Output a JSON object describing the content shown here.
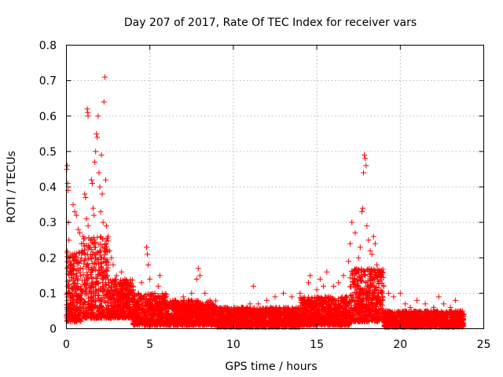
{
  "chart_data": {
    "type": "scatter",
    "title": "Day 207 of 2017, Rate Of TEC Index for receiver vars",
    "xlabel": "GPS time / hours",
    "ylabel": "ROTI / TECUs",
    "xlim": [
      0,
      25
    ],
    "ylim": [
      0,
      0.8
    ],
    "xticks": [
      0,
      5,
      10,
      15,
      20,
      25
    ],
    "yticks": [
      0,
      0.1,
      0.2,
      0.3,
      0.4,
      0.5,
      0.6,
      0.7,
      0.8
    ],
    "xtick_labels": [
      "0",
      "5",
      "10",
      "15",
      "20",
      "25"
    ],
    "ytick_labels": [
      "0",
      "0.1",
      "0.2",
      "0.3",
      "0.4",
      "0.5",
      "0.6",
      "0.7",
      "0.8"
    ],
    "grid": true,
    "marker": "+",
    "marker_color": "#ff0000",
    "series": [
      {
        "name": "ROTI",
        "points": [
          [
            0.02,
            0.45
          ],
          [
            0.05,
            0.46
          ],
          [
            0.08,
            0.41
          ],
          [
            0.1,
            0.39
          ],
          [
            0.12,
            0.3
          ],
          [
            0.15,
            0.25
          ],
          [
            0.2,
            0.2
          ],
          [
            0.25,
            0.18
          ],
          [
            0.3,
            0.15
          ],
          [
            0.4,
            0.35
          ],
          [
            0.5,
            0.33
          ],
          [
            0.6,
            0.32
          ],
          [
            0.7,
            0.28
          ],
          [
            0.8,
            0.27
          ],
          [
            0.9,
            0.24
          ],
          [
            1.0,
            0.26
          ],
          [
            1.1,
            0.38
          ],
          [
            1.15,
            0.37
          ],
          [
            1.2,
            0.31
          ],
          [
            1.3,
            0.29
          ],
          [
            1.25,
            0.62
          ],
          [
            1.28,
            0.61
          ],
          [
            1.3,
            0.6
          ],
          [
            1.5,
            0.42
          ],
          [
            1.55,
            0.41
          ],
          [
            1.6,
            0.34
          ],
          [
            1.65,
            0.32
          ],
          [
            1.7,
            0.47
          ],
          [
            1.75,
            0.5
          ],
          [
            1.8,
            0.55
          ],
          [
            1.85,
            0.54
          ],
          [
            1.9,
            0.6
          ],
          [
            1.95,
            0.44
          ],
          [
            2.0,
            0.4
          ],
          [
            2.05,
            0.33
          ],
          [
            2.1,
            0.49
          ],
          [
            2.15,
            0.38
          ],
          [
            2.2,
            0.3
          ],
          [
            2.25,
            0.64
          ],
          [
            2.3,
            0.71
          ],
          [
            2.35,
            0.42
          ],
          [
            2.4,
            0.29
          ],
          [
            2.5,
            0.26
          ],
          [
            2.6,
            0.22
          ],
          [
            2.7,
            0.2
          ],
          [
            2.8,
            0.18
          ],
          [
            3.0,
            0.15
          ],
          [
            3.3,
            0.16
          ],
          [
            3.5,
            0.14
          ],
          [
            3.8,
            0.12
          ],
          [
            4.0,
            0.11
          ],
          [
            4.3,
            0.1
          ],
          [
            4.5,
            0.13
          ],
          [
            4.8,
            0.23
          ],
          [
            4.85,
            0.21
          ],
          [
            4.9,
            0.18
          ],
          [
            5.0,
            0.14
          ],
          [
            5.3,
            0.1
          ],
          [
            5.5,
            0.12
          ],
          [
            5.6,
            0.15
          ],
          [
            5.8,
            0.09
          ],
          [
            6.0,
            0.07
          ],
          [
            6.5,
            0.08
          ],
          [
            7.0,
            0.09
          ],
          [
            7.5,
            0.1
          ],
          [
            7.8,
            0.14
          ],
          [
            7.9,
            0.17
          ],
          [
            8.0,
            0.15
          ],
          [
            8.3,
            0.1
          ],
          [
            8.6,
            0.08
          ],
          [
            9.0,
            0.06
          ],
          [
            9.5,
            0.06
          ],
          [
            10.0,
            0.05
          ],
          [
            10.5,
            0.06
          ],
          [
            11.0,
            0.07
          ],
          [
            11.2,
            0.12
          ],
          [
            11.5,
            0.07
          ],
          [
            12.0,
            0.08
          ],
          [
            12.5,
            0.09
          ],
          [
            13.0,
            0.1
          ],
          [
            13.5,
            0.09
          ],
          [
            14.0,
            0.1
          ],
          [
            14.5,
            0.13
          ],
          [
            14.6,
            0.15
          ],
          [
            15.0,
            0.11
          ],
          [
            15.2,
            0.14
          ],
          [
            15.4,
            0.12
          ],
          [
            15.6,
            0.16
          ],
          [
            16.0,
            0.12
          ],
          [
            16.3,
            0.13
          ],
          [
            16.6,
            0.15
          ],
          [
            16.9,
            0.19
          ],
          [
            17.0,
            0.24
          ],
          [
            17.1,
            0.3
          ],
          [
            17.3,
            0.27
          ],
          [
            17.5,
            0.2
          ],
          [
            17.6,
            0.23
          ],
          [
            17.7,
            0.33
          ],
          [
            17.75,
            0.34
          ],
          [
            17.8,
            0.44
          ],
          [
            17.85,
            0.49
          ],
          [
            17.9,
            0.48
          ],
          [
            17.95,
            0.46
          ],
          [
            18.0,
            0.29
          ],
          [
            18.1,
            0.25
          ],
          [
            18.2,
            0.22
          ],
          [
            18.3,
            0.21
          ],
          [
            18.4,
            0.26
          ],
          [
            18.5,
            0.24
          ],
          [
            18.6,
            0.18
          ],
          [
            18.8,
            0.15
          ],
          [
            19.0,
            0.12
          ],
          [
            19.3,
            0.1
          ],
          [
            19.6,
            0.09
          ],
          [
            20.0,
            0.1
          ],
          [
            20.3,
            0.07
          ],
          [
            20.6,
            0.06
          ],
          [
            21.0,
            0.08
          ],
          [
            21.5,
            0.07
          ],
          [
            22.0,
            0.06
          ],
          [
            22.3,
            0.09
          ],
          [
            22.6,
            0.07
          ],
          [
            23.0,
            0.06
          ],
          [
            23.3,
            0.08
          ],
          [
            23.6,
            0.05
          ],
          [
            23.8,
            0.04
          ]
        ],
        "bands": [
          {
            "x_start": 0.0,
            "x_end": 1.0,
            "y_low": 0.02,
            "y_high": 0.22
          },
          {
            "x_start": 1.0,
            "x_end": 2.5,
            "y_low": 0.03,
            "y_high": 0.26
          },
          {
            "x_start": 2.5,
            "x_end": 4.0,
            "y_low": 0.03,
            "y_high": 0.14
          },
          {
            "x_start": 4.0,
            "x_end": 6.0,
            "y_low": 0.01,
            "y_high": 0.1
          },
          {
            "x_start": 6.0,
            "x_end": 9.0,
            "y_low": 0.01,
            "y_high": 0.08
          },
          {
            "x_start": 9.0,
            "x_end": 14.0,
            "y_low": 0.005,
            "y_high": 0.06
          },
          {
            "x_start": 14.0,
            "x_end": 17.0,
            "y_low": 0.01,
            "y_high": 0.09
          },
          {
            "x_start": 17.0,
            "x_end": 19.0,
            "y_low": 0.02,
            "y_high": 0.17
          },
          {
            "x_start": 19.0,
            "x_end": 23.8,
            "y_low": 0.005,
            "y_high": 0.05
          }
        ]
      }
    ]
  }
}
